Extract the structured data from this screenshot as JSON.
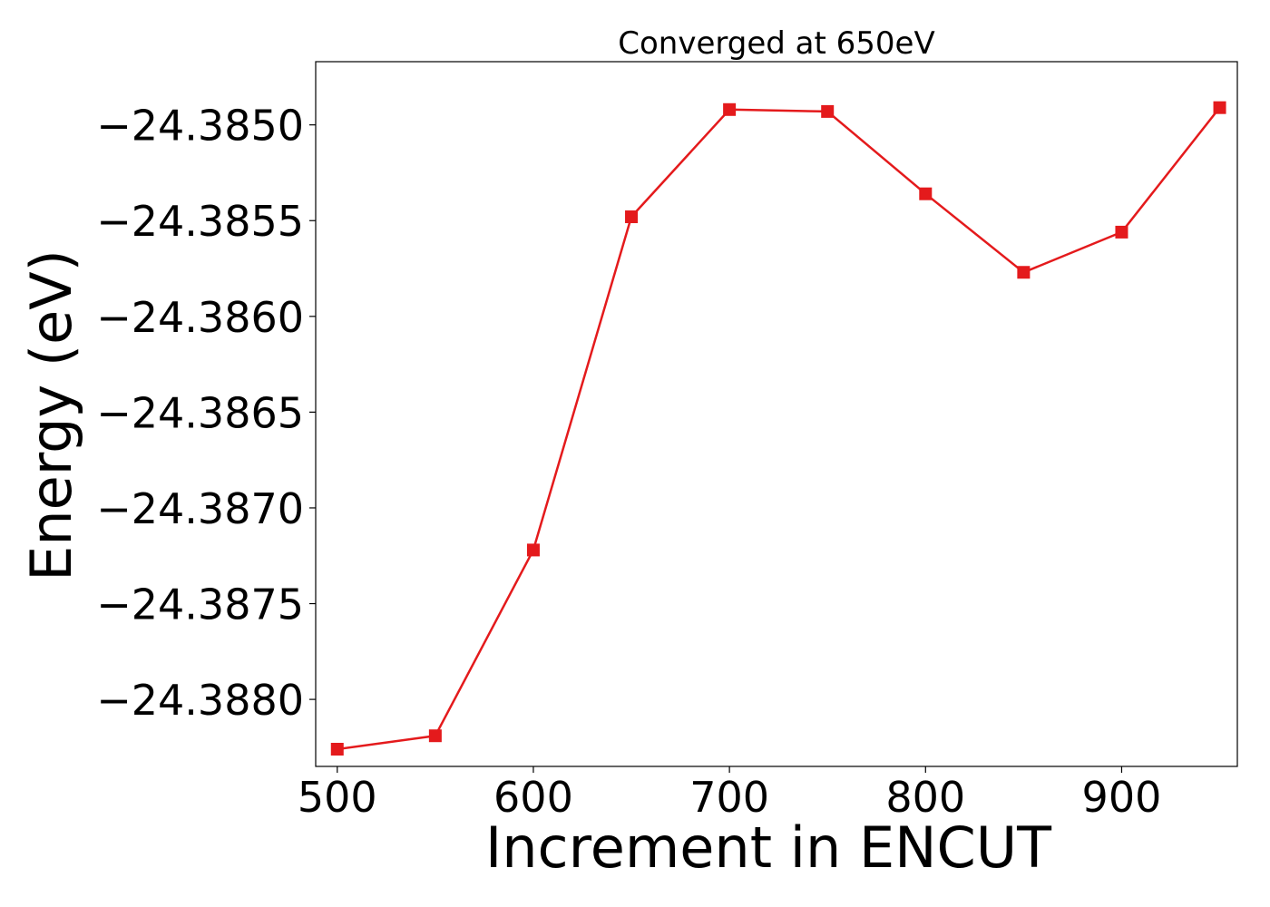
{
  "chart_data": {
    "type": "line",
    "title": "Converged at 650eV",
    "xlabel": "Increment in ENCUT",
    "ylabel": "Energy (eV)",
    "x": [
      500,
      550,
      600,
      650,
      700,
      750,
      800,
      850,
      900,
      950
    ],
    "series": [
      {
        "values": [
          -24.38826,
          -24.38819,
          -24.38722,
          -24.38548,
          -24.38492,
          -24.38493,
          -24.38536,
          -24.38577,
          -24.38556,
          -24.38491
        ],
        "color": "#e41a1c",
        "marker": "square"
      }
    ],
    "xlim": [
      489,
      959
    ],
    "ylim": [
      -24.38835,
      -24.38467
    ],
    "xticks": [
      500,
      600,
      700,
      800,
      900
    ],
    "xtick_labels": [
      "500",
      "600",
      "700",
      "800",
      "900"
    ],
    "yticks": [
      -24.388,
      -24.3875,
      -24.387,
      -24.3865,
      -24.386,
      -24.3855,
      -24.385
    ],
    "ytick_labels": [
      "−24.3880",
      "−24.3875",
      "−24.3870",
      "−24.3865",
      "−24.3860",
      "−24.3855",
      "−24.3850"
    ],
    "grid": false,
    "legend": "none"
  }
}
